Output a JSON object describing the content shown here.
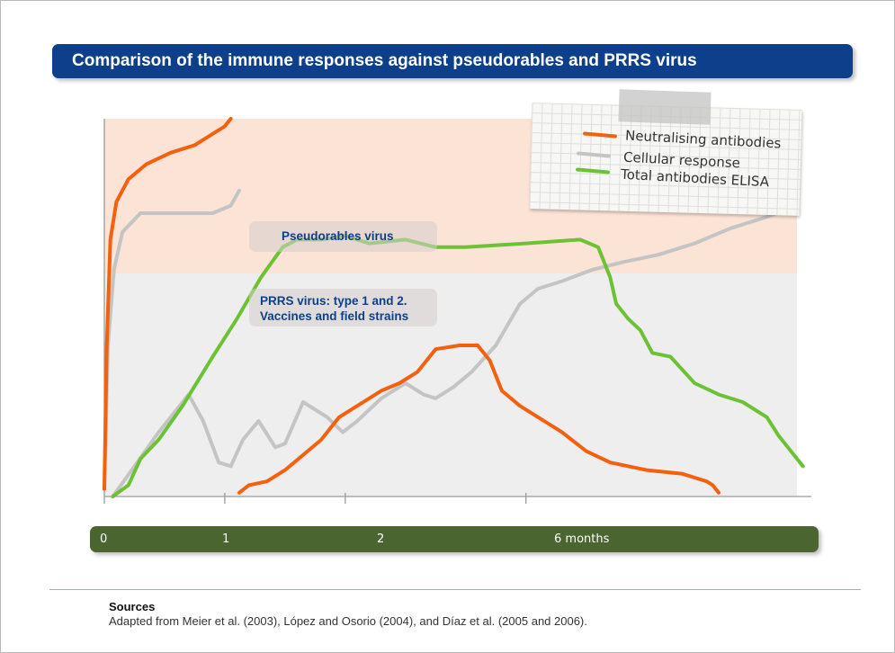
{
  "title": "Comparison of the immune responses against pseudorables and PRRS virus",
  "colors": {
    "title_bar": "#0e3f8a",
    "neutralising": "#f4600c",
    "cellular": "#c4c4c4",
    "total_elisa": "#6cc234",
    "pseudorabies_band": "#fbe3d6",
    "prrs_band": "#eeeeee",
    "timeline": "#4a6530"
  },
  "regions": {
    "pseudorabies": "Pseudorables virus",
    "prrs_line1": "PRRS virus: type 1 and 2.",
    "prrs_line2": "Vaccines and field strains"
  },
  "legend": {
    "items": [
      {
        "label": "Neutralising antibodies",
        "color": "#f4600c"
      },
      {
        "label": "Cellular response",
        "color": "#c4c4c4"
      },
      {
        "label": "Total antibodies ELISA",
        "color": "#6cc234"
      }
    ]
  },
  "timeline": {
    "ticks": [
      {
        "label": "0",
        "pos": 0
      },
      {
        "label": "1",
        "pos": 1
      },
      {
        "label": "2",
        "pos": 2
      },
      {
        "label": "6 months",
        "pos": 3.5
      }
    ]
  },
  "chart_data": {
    "type": "line",
    "xlabel": "",
    "ylabel": "",
    "x_axis_ticks": [
      "0",
      "1",
      "2",
      "6 months"
    ],
    "xlim": [
      0,
      5.75
    ],
    "ylim": [
      0,
      100
    ],
    "grid": false,
    "legend_position": "top-right",
    "series": [
      {
        "name": "Neutralising antibodies",
        "group": "pseudorabies",
        "color": "#f4600c",
        "points": [
          [
            0.0,
            2
          ],
          [
            0.02,
            40
          ],
          [
            0.05,
            68
          ],
          [
            0.1,
            78
          ],
          [
            0.2,
            84
          ],
          [
            0.35,
            88
          ],
          [
            0.55,
            91
          ],
          [
            0.75,
            93
          ],
          [
            0.9,
            96
          ],
          [
            1.0,
            98
          ],
          [
            1.05,
            100
          ]
        ]
      },
      {
        "name": "Cellular response",
        "group": "pseudorabies",
        "color": "#c4c4c4",
        "points": [
          [
            0.0,
            2
          ],
          [
            0.03,
            40
          ],
          [
            0.08,
            60
          ],
          [
            0.15,
            70
          ],
          [
            0.3,
            75
          ],
          [
            0.5,
            75
          ],
          [
            0.7,
            75
          ],
          [
            0.9,
            75
          ],
          [
            1.05,
            77
          ],
          [
            1.12,
            81
          ]
        ]
      },
      {
        "name": "Neutralising antibodies",
        "group": "prrs",
        "color": "#f4600c",
        "points": [
          [
            1.12,
            1
          ],
          [
            1.2,
            3
          ],
          [
            1.35,
            4
          ],
          [
            1.5,
            7
          ],
          [
            1.65,
            11
          ],
          [
            1.8,
            15
          ],
          [
            1.95,
            21
          ],
          [
            2.1,
            24
          ],
          [
            2.3,
            28
          ],
          [
            2.45,
            30
          ],
          [
            2.6,
            33
          ],
          [
            2.75,
            39
          ],
          [
            2.95,
            40
          ],
          [
            3.1,
            40
          ],
          [
            3.2,
            36
          ],
          [
            3.3,
            28
          ],
          [
            3.45,
            24
          ],
          [
            3.6,
            21
          ],
          [
            3.8,
            17
          ],
          [
            4.0,
            12
          ],
          [
            4.2,
            9
          ],
          [
            4.5,
            7
          ],
          [
            4.8,
            6
          ],
          [
            5.0,
            4
          ],
          [
            5.05,
            3
          ],
          [
            5.1,
            1
          ]
        ]
      },
      {
        "name": "Cellular response",
        "group": "prrs",
        "color": "#c4c4c4",
        "points": [
          [
            0.07,
            0
          ],
          [
            0.25,
            8
          ],
          [
            0.45,
            17
          ],
          [
            0.7,
            27
          ],
          [
            0.82,
            20
          ],
          [
            0.95,
            9
          ],
          [
            1.05,
            8
          ],
          [
            1.15,
            15
          ],
          [
            1.28,
            20
          ],
          [
            1.42,
            13
          ],
          [
            1.5,
            14
          ],
          [
            1.65,
            25
          ],
          [
            1.85,
            21
          ],
          [
            1.98,
            17
          ],
          [
            2.1,
            20
          ],
          [
            2.3,
            26
          ],
          [
            2.5,
            30
          ],
          [
            2.65,
            27
          ],
          [
            2.75,
            26
          ],
          [
            2.9,
            29
          ],
          [
            3.05,
            33
          ],
          [
            3.25,
            40
          ],
          [
            3.45,
            51
          ],
          [
            3.6,
            55
          ],
          [
            3.8,
            57
          ],
          [
            4.05,
            60
          ],
          [
            4.3,
            62
          ],
          [
            4.6,
            64
          ],
          [
            4.9,
            67
          ],
          [
            5.2,
            71
          ],
          [
            5.5,
            74
          ],
          [
            5.75,
            77
          ]
        ]
      },
      {
        "name": "Total antibodies ELISA",
        "group": "prrs",
        "color": "#6cc234",
        "points": [
          [
            0.07,
            0
          ],
          [
            0.2,
            3
          ],
          [
            0.3,
            10
          ],
          [
            0.45,
            15
          ],
          [
            0.65,
            24
          ],
          [
            0.9,
            37
          ],
          [
            1.1,
            47
          ],
          [
            1.3,
            58
          ],
          [
            1.48,
            66
          ],
          [
            1.6,
            68
          ],
          [
            1.8,
            68
          ],
          [
            2.0,
            69
          ],
          [
            2.2,
            67
          ],
          [
            2.5,
            68
          ],
          [
            2.75,
            66
          ],
          [
            3.0,
            66
          ],
          [
            3.5,
            67
          ],
          [
            3.95,
            68
          ],
          [
            4.1,
            66
          ],
          [
            4.2,
            58
          ],
          [
            4.25,
            51
          ],
          [
            4.35,
            47
          ],
          [
            4.45,
            44
          ],
          [
            4.55,
            38
          ],
          [
            4.7,
            37
          ],
          [
            4.9,
            30
          ],
          [
            5.1,
            27
          ],
          [
            5.3,
            25
          ],
          [
            5.5,
            21
          ],
          [
            5.6,
            16
          ],
          [
            5.7,
            12
          ],
          [
            5.75,
            10
          ],
          [
            5.8,
            8
          ]
        ]
      }
    ]
  },
  "sources": {
    "title": "Sources",
    "text": "Adapted from Meier et al. (2003), López and Osorio (2004), and Díaz et al. (2005 and 2006)."
  }
}
